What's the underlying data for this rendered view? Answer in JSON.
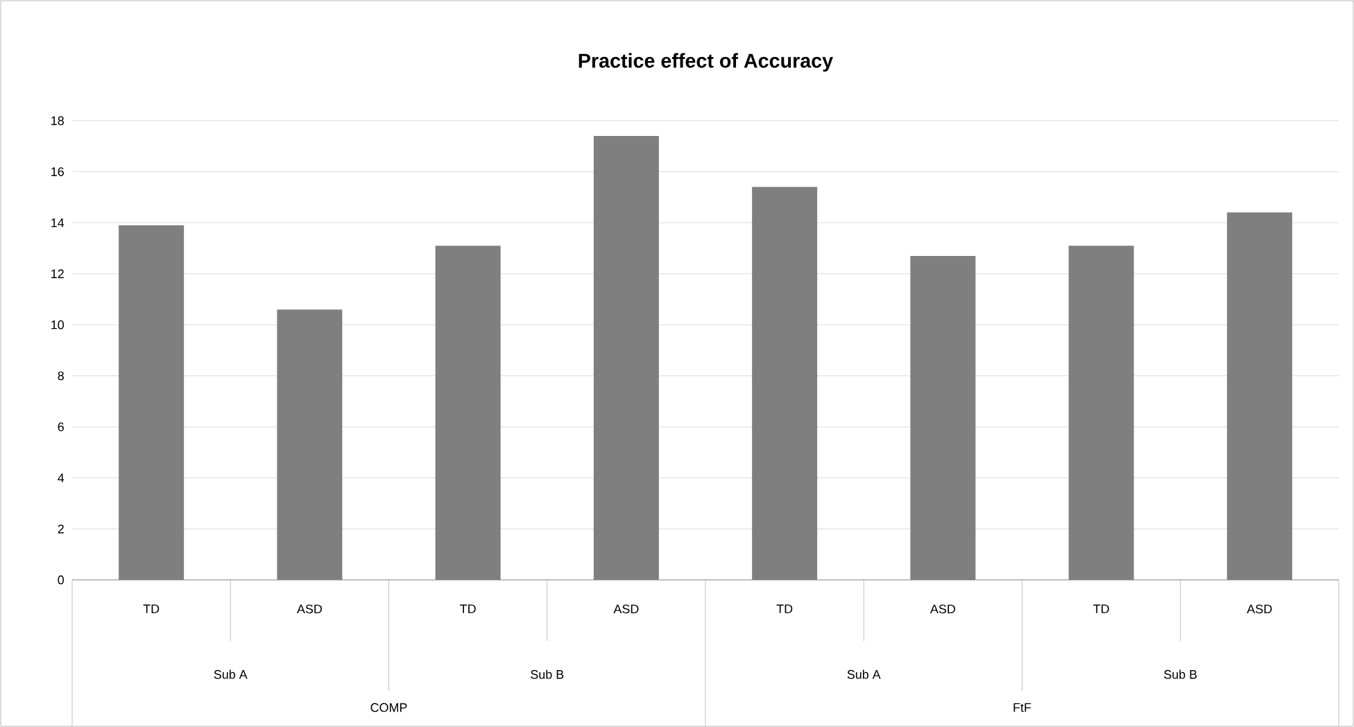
{
  "chart_data": {
    "type": "bar",
    "title": "Practice  effect of Accuracy",
    "categories": [
      "TD",
      "ASD",
      "TD",
      "ASD",
      "TD",
      "ASD",
      "TD",
      "ASD"
    ],
    "values": [
      13.9,
      10.6,
      13.1,
      17.4,
      15.4,
      12.7,
      13.1,
      14.4
    ],
    "color": "#7f7f7f",
    "ylim": [
      0,
      18
    ],
    "yticks": [
      0,
      2,
      4,
      6,
      8,
      10,
      12,
      14,
      16,
      18
    ],
    "grid": "y",
    "annotations": [
      "Sub A",
      "Sub B",
      "Sub A",
      "Sub B",
      "COMP",
      "FtF"
    ]
  }
}
